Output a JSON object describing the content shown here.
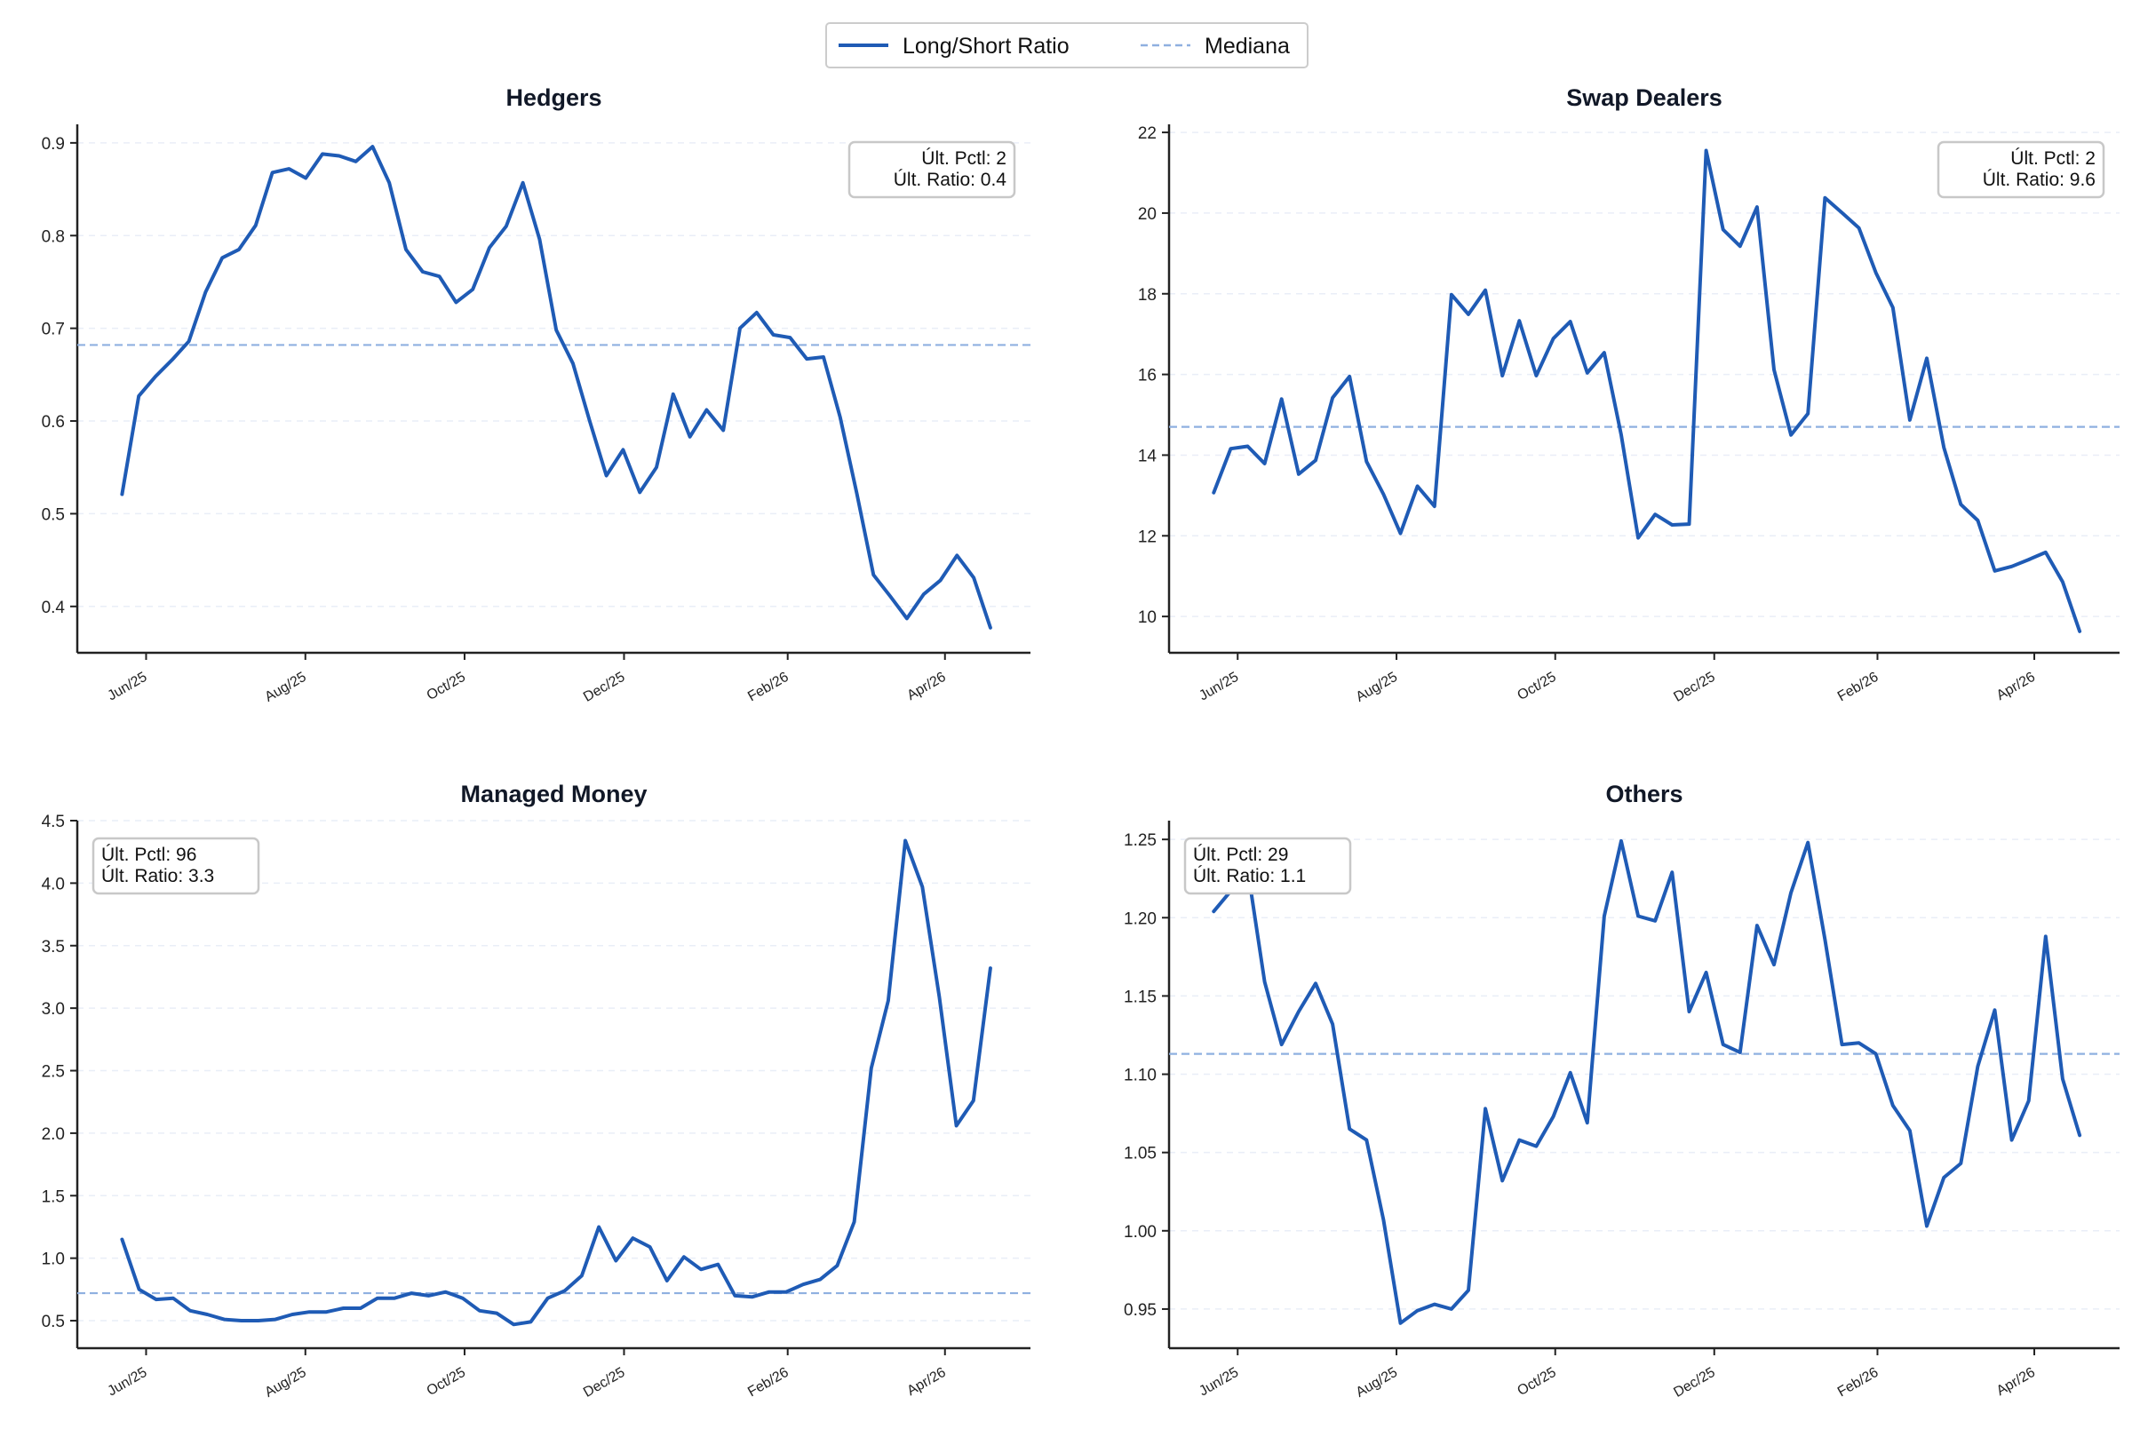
{
  "legend": {
    "items": [
      {
        "label": "Long/Short Ratio",
        "style": "solid",
        "color": "#1f5bb5"
      },
      {
        "label": "Mediana",
        "style": "dashed",
        "color": "#8fb0e0"
      }
    ],
    "placement": "top-center"
  },
  "colors": {
    "line": "#1f5bb5",
    "median": "#8fb0e0",
    "grid": "#e9eef7",
    "axis": "#222222"
  },
  "chart_data": [
    {
      "type": "line",
      "title": "Hedgers",
      "x_ticks": [
        "Jun/25",
        "Aug/25",
        "Oct/25",
        "Dec/25",
        "Feb/26",
        "Apr/26"
      ],
      "ylim": [
        0.35,
        0.92
      ],
      "y_ticks": [
        "0.4",
        "0.5",
        "0.6",
        "0.7",
        "0.8",
        "0.9"
      ],
      "grid": "horizontal dashed",
      "median": 0.682,
      "annotation": {
        "lines": [
          "Últ. Pctl: 2",
          "Últ. Ratio: 0.4"
        ],
        "placement": "top-right"
      },
      "series": [
        {
          "values": [
            0.521,
            0.627,
            0.648,
            0.666,
            0.686,
            0.739,
            0.776,
            0.785,
            0.811,
            0.868,
            0.872,
            0.862,
            0.888,
            0.886,
            0.88,
            0.896,
            0.857,
            0.785,
            0.761,
            0.756,
            0.728,
            0.742,
            0.787,
            0.81,
            0.857,
            0.796,
            0.698,
            0.662,
            0.6,
            0.541,
            0.569,
            0.523,
            0.55,
            0.629,
            0.583,
            0.612,
            0.59,
            0.7,
            0.717,
            0.693,
            0.69,
            0.667,
            0.669,
            0.604,
            0.522,
            0.434,
            0.411,
            0.387,
            0.413,
            0.428,
            0.455,
            0.431,
            0.377
          ]
        }
      ]
    },
    {
      "type": "line",
      "title": "Swap Dealers",
      "x_ticks": [
        "Jun/25",
        "Aug/25",
        "Oct/25",
        "Dec/25",
        "Feb/26",
        "Apr/26"
      ],
      "ylim": [
        9.1,
        22.2
      ],
      "y_ticks": [
        "10",
        "12",
        "14",
        "16",
        "18",
        "20",
        "22"
      ],
      "grid": "horizontal dashed",
      "median": 14.7,
      "annotation": {
        "lines": [
          "Últ. Pctl: 2",
          "Últ. Ratio: 9.6"
        ],
        "placement": "top-right"
      },
      "series": [
        {
          "values": [
            13.07,
            14.16,
            14.22,
            13.79,
            15.39,
            13.53,
            13.87,
            15.42,
            15.95,
            13.84,
            13.03,
            12.06,
            13.23,
            12.73,
            17.98,
            17.49,
            18.09,
            15.97,
            17.33,
            15.97,
            16.89,
            17.31,
            16.04,
            16.54,
            14.5,
            11.95,
            12.53,
            12.27,
            12.29,
            21.55,
            19.59,
            19.18,
            20.15,
            16.12,
            14.5,
            15.03,
            20.38,
            20.01,
            19.63,
            18.52,
            17.66,
            14.87,
            16.4,
            14.19,
            12.78,
            12.38,
            11.13,
            11.24,
            11.41,
            11.59,
            10.86,
            9.63
          ]
        }
      ]
    },
    {
      "type": "line",
      "title": "Managed Money",
      "x_ticks": [
        "Jun/25",
        "Aug/25",
        "Oct/25",
        "Dec/25",
        "Feb/26",
        "Apr/26"
      ],
      "ylim": [
        0.28,
        4.5
      ],
      "y_ticks": [
        "0.5",
        "1.0",
        "1.5",
        "2.0",
        "2.5",
        "3.0",
        "3.5",
        "4.0",
        "4.5"
      ],
      "grid": "horizontal dashed",
      "median": 0.72,
      "annotation": {
        "lines": [
          "Últ. Pctl: 96",
          "Últ. Ratio: 3.3"
        ],
        "placement": "top-left"
      },
      "series": [
        {
          "values": [
            1.15,
            0.75,
            0.67,
            0.68,
            0.58,
            0.55,
            0.51,
            0.5,
            0.5,
            0.51,
            0.55,
            0.57,
            0.57,
            0.6,
            0.6,
            0.68,
            0.68,
            0.72,
            0.7,
            0.73,
            0.68,
            0.58,
            0.56,
            0.47,
            0.49,
            0.68,
            0.74,
            0.86,
            1.25,
            0.98,
            1.16,
            1.09,
            0.82,
            1.01,
            0.91,
            0.95,
            0.7,
            0.69,
            0.73,
            0.73,
            0.79,
            0.83,
            0.94,
            1.29,
            2.52,
            3.06,
            4.34,
            3.97,
            3.09,
            2.06,
            2.26,
            3.32
          ]
        }
      ]
    },
    {
      "type": "line",
      "title": "Others",
      "x_ticks": [
        "Jun/25",
        "Aug/25",
        "Oct/25",
        "Dec/25",
        "Feb/26",
        "Apr/26"
      ],
      "ylim": [
        0.925,
        1.262
      ],
      "y_ticks": [
        "0.95",
        "1.00",
        "1.05",
        "1.10",
        "1.15",
        "1.20",
        "1.25"
      ],
      "grid": "horizontal dashed",
      "median": 1.113,
      "annotation": {
        "lines": [
          "Últ. Pctl: 29",
          "Últ. Ratio: 1.1"
        ],
        "placement": "top-left"
      },
      "series": [
        {
          "values": [
            1.204,
            1.217,
            1.231,
            1.159,
            1.119,
            1.14,
            1.158,
            1.132,
            1.065,
            1.058,
            1.007,
            0.941,
            0.949,
            0.953,
            0.95,
            0.962,
            1.078,
            1.032,
            1.058,
            1.054,
            1.073,
            1.101,
            1.069,
            1.201,
            1.249,
            1.201,
            1.198,
            1.229,
            1.14,
            1.165,
            1.119,
            1.114,
            1.195,
            1.17,
            1.216,
            1.248,
            1.186,
            1.119,
            1.12,
            1.113,
            1.08,
            1.064,
            1.003,
            1.034,
            1.043,
            1.105,
            1.141,
            1.058,
            1.083,
            1.188,
            1.097,
            1.061
          ]
        }
      ]
    }
  ]
}
